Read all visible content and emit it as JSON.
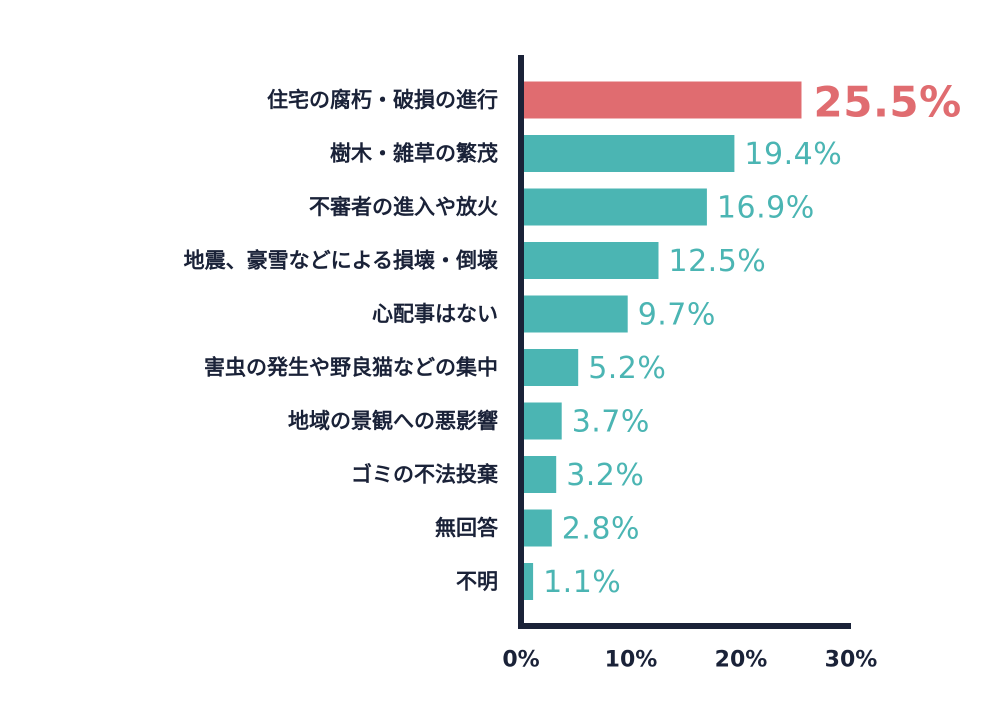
{
  "chart_data": {
    "type": "bar",
    "orientation": "horizontal",
    "categories": [
      "住宅の腐朽・破損の進行",
      "樹木・雑草の繁茂",
      "不審者の進入や放火",
      "地震、豪雪などによる損壊・倒壊",
      "心配事はない",
      "害虫の発生や野良猫などの集中",
      "地域の景観への悪影響",
      "ゴミの不法投棄",
      "無回答",
      "不明"
    ],
    "values": [
      25.5,
      19.4,
      16.9,
      12.5,
      9.7,
      5.2,
      3.7,
      3.2,
      2.8,
      1.1
    ],
    "value_labels": [
      "25.5%",
      "19.4%",
      "16.9%",
      "12.5%",
      "9.7%",
      "5.2%",
      "3.7%",
      "3.2%",
      "2.8%",
      "1.1%"
    ],
    "highlight_index": 0,
    "xlim": [
      0,
      30
    ],
    "xticks": [
      0,
      10,
      20,
      30
    ],
    "xtick_labels": [
      "0%",
      "10%",
      "20%",
      "30%"
    ],
    "title": "",
    "xlabel": "",
    "ylabel": "",
    "grid": false,
    "colors": {
      "bar": "#4bb5b3",
      "highlight_bar": "#e06c70",
      "axis": "#1a2238",
      "text": "#1a2238"
    }
  }
}
